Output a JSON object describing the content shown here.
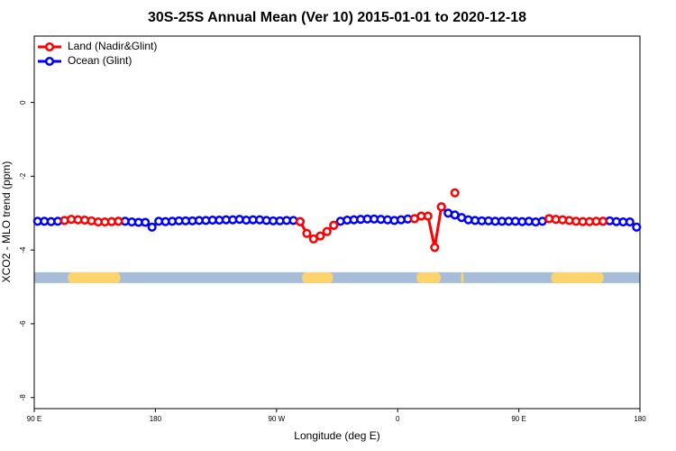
{
  "chart_data": {
    "type": "line",
    "title": "30S-25S Annual Mean (Ver 10)   2015-01-01 to 2020-12-18",
    "x_label": "Longitude (deg E)",
    "y_label": "XCO2 - MLO trend (ppm)",
    "xlim": [
      90,
      540
    ],
    "ylim": [
      -8.3,
      1.8
    ],
    "xticks": [
      {
        "value": 90,
        "label": "90 E"
      },
      180,
      {
        "value": 270,
        "label": "90 W"
      },
      {
        "value": 360,
        "label": "0"
      },
      {
        "value": 450,
        "label": "90 E"
      },
      {
        "value": 540,
        "label": "180"
      }
    ],
    "yticks": [
      0,
      -2,
      -4,
      -6,
      -8
    ],
    "legend_position": "upper left",
    "mask": {
      "y": -4.75,
      "ocean_color": "#a7bcd9",
      "land_color": "#fbd46d",
      "land": [
        [
          115,
          154
        ],
        [
          289,
          312
        ],
        [
          374,
          392
        ],
        [
          407,
          409
        ],
        [
          474,
          513
        ]
      ]
    },
    "x": [
      92.5,
      97.5,
      102.5,
      107.5,
      112.5,
      117.5,
      122.5,
      127.5,
      132.5,
      137.5,
      142.5,
      147.5,
      152.5,
      157.5,
      162.5,
      167.5,
      172.5,
      177.5,
      182.5,
      187.5,
      192.5,
      197.5,
      202.5,
      207.5,
      212.5,
      217.5,
      222.5,
      227.5,
      232.5,
      237.5,
      242.5,
      247.5,
      252.5,
      257.5,
      262.5,
      267.5,
      272.5,
      277.5,
      282.5,
      287.5,
      292.5,
      297.5,
      302.5,
      307.5,
      312.5,
      317.5,
      322.5,
      327.5,
      332.5,
      337.5,
      342.5,
      347.5,
      352.5,
      357.5,
      362.5,
      367.5,
      372.5,
      377.5,
      382.5,
      387.5,
      392.5,
      397.5,
      402.5,
      407.5,
      412.5,
      417.5,
      422.5,
      427.5,
      432.5,
      437.5,
      442.5,
      447.5,
      452.5,
      457.5,
      462.5,
      467.5,
      472.5,
      477.5,
      482.5,
      487.5,
      492.5,
      497.5,
      502.5,
      507.5,
      512.5,
      517.5,
      522.5,
      527.5,
      532.5,
      537.5
    ],
    "series": [
      {
        "name": "Ocean (Glint)",
        "color": "#0000ff",
        "values": [
          -3.22,
          -3.22,
          -3.23,
          -3.22,
          -3.2,
          null,
          null,
          null,
          null,
          null,
          null,
          null,
          -3.22,
          -3.22,
          -3.24,
          -3.25,
          -3.25,
          -3.38,
          -3.22,
          -3.23,
          -3.22,
          -3.21,
          -3.21,
          -3.21,
          -3.2,
          -3.2,
          -3.19,
          -3.19,
          -3.18,
          -3.18,
          -3.17,
          -3.19,
          -3.18,
          -3.18,
          -3.2,
          -3.21,
          -3.21,
          -3.2,
          -3.2,
          -3.23,
          null,
          null,
          null,
          null,
          -3.33,
          -3.22,
          -3.19,
          -3.18,
          -3.17,
          -3.16,
          -3.16,
          -3.17,
          -3.18,
          -3.2,
          -3.18,
          -3.16,
          -3.15,
          null,
          null,
          null,
          -2.83,
          -3.0,
          -3.05,
          -3.12,
          -3.18,
          -3.2,
          -3.21,
          -3.21,
          -3.22,
          -3.22,
          -3.22,
          -3.22,
          -3.23,
          -3.22,
          -3.24,
          -3.22,
          -3.15,
          null,
          null,
          null,
          null,
          null,
          null,
          null,
          -3.22,
          -3.21,
          -3.23,
          -3.24,
          -3.24,
          -3.38
        ]
      },
      {
        "name": "Land (Nadir&Glint)",
        "color": "#ff0000",
        "values": [
          null,
          null,
          null,
          null,
          -3.2,
          -3.17,
          -3.18,
          -3.19,
          -3.21,
          -3.24,
          -3.24,
          -3.23,
          -3.22,
          null,
          null,
          null,
          null,
          null,
          null,
          null,
          null,
          null,
          null,
          null,
          null,
          null,
          null,
          null,
          null,
          null,
          null,
          null,
          null,
          null,
          null,
          null,
          null,
          null,
          null,
          -3.23,
          -3.55,
          -3.7,
          -3.62,
          -3.5,
          -3.33,
          null,
          null,
          null,
          null,
          null,
          null,
          null,
          null,
          null,
          null,
          null,
          -3.15,
          -3.08,
          -3.08,
          -3.93,
          -2.83,
          null,
          -2.45,
          null,
          null,
          null,
          null,
          null,
          null,
          null,
          null,
          null,
          null,
          null,
          null,
          null,
          -3.15,
          -3.17,
          -3.18,
          -3.2,
          -3.22,
          -3.23,
          -3.23,
          -3.22,
          -3.22,
          null,
          null,
          null,
          null,
          null
        ]
      }
    ]
  }
}
